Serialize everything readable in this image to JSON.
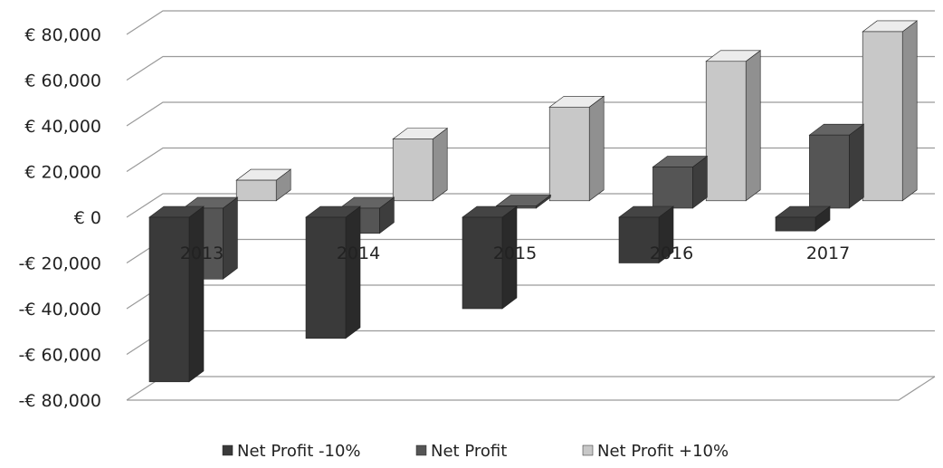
{
  "chart_data": {
    "type": "bar",
    "title": "",
    "xlabel": "",
    "ylabel": "",
    "categories": [
      "2013",
      "2014",
      "2015",
      "2016",
      "2017"
    ],
    "series": [
      {
        "name": "Net Profit -10%",
        "values": [
          -72000,
          -53000,
          -40000,
          -20000,
          -6000
        ],
        "color": "#3a3a3a"
      },
      {
        "name": "Net Profit",
        "values": [
          -31000,
          -11000,
          1000,
          18000,
          32000
        ],
        "color": "#555555"
      },
      {
        "name": "Net Profit +10%",
        "values": [
          9000,
          27000,
          41000,
          61000,
          74000
        ],
        "color": "#c8c8c8"
      }
    ],
    "ylim": [
      -80000,
      80000
    ],
    "yticks": [
      80000,
      60000,
      40000,
      20000,
      0,
      -20000,
      -40000,
      -60000,
      -80000
    ],
    "ytick_labels": [
      "€ 80,000",
      "€ 60,000",
      "€ 40,000",
      "€ 20,000",
      "€ 0",
      "-€ 20,000",
      "-€ 40,000",
      "-€ 60,000",
      "-€ 80,000"
    ],
    "grid": true,
    "legend": "bottom",
    "style": "3d-clustered-column"
  }
}
